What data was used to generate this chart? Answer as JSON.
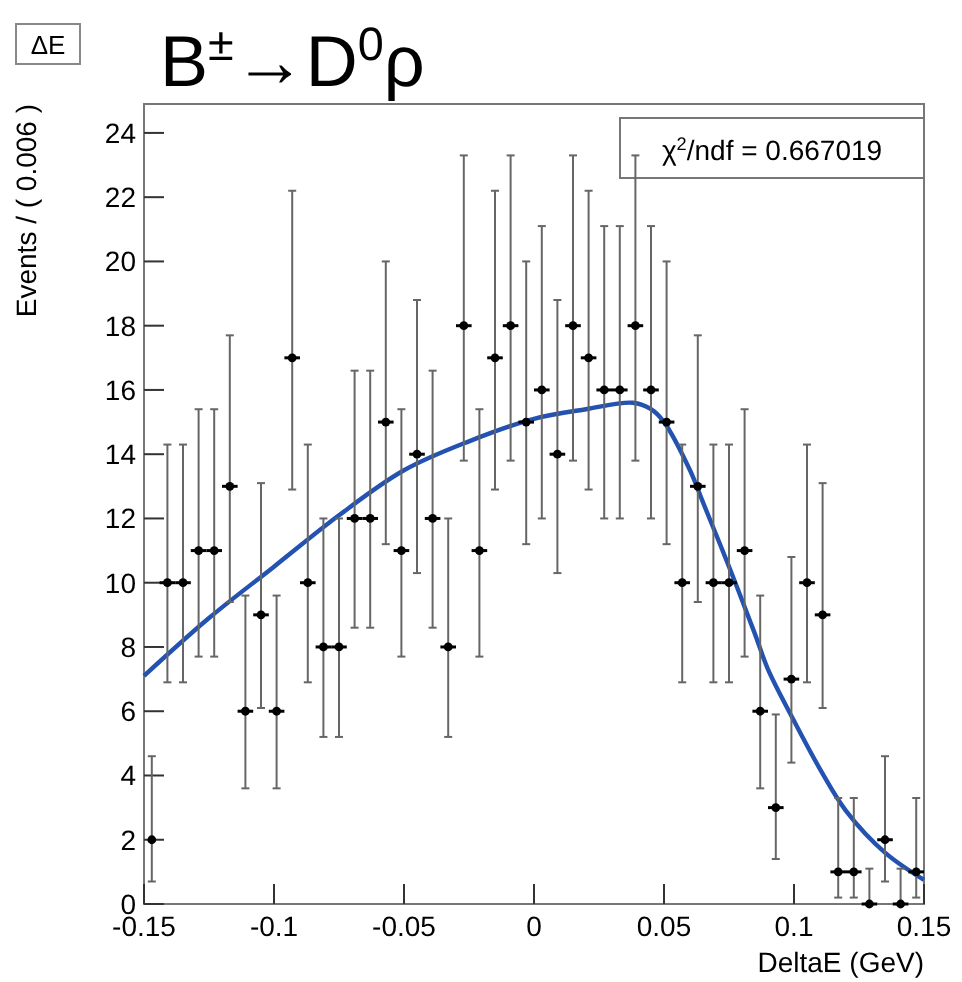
{
  "chart_data": {
    "type": "scatter",
    "title": "B$^{±}$→D$^{0}$ρ",
    "xlabel": "DeltaE (GeV)",
    "ylabel": "Events / ( 0.006 )",
    "annotations": [
      "ΔE",
      "χ$^{2}$/ndf = 0.667019"
    ],
    "xlim": [
      -0.15,
      0.15
    ],
    "xticks": [
      -0.15,
      -0.1,
      -0.05,
      0,
      0.05,
      0.1,
      0.15
    ],
    "ylim": [
      0,
      24.9
    ],
    "yticks": [
      0,
      2,
      4,
      6,
      8,
      10,
      12,
      14,
      16,
      18,
      20,
      22,
      24
    ],
    "grid": false,
    "series": [
      {
        "color": "#000000",
        "marker": "circle",
        "x": [
          -0.147,
          -0.141,
          -0.135,
          -0.129,
          -0.123,
          -0.117,
          -0.111,
          -0.105,
          -0.099,
          -0.093,
          -0.087,
          -0.081,
          -0.075,
          -0.069,
          -0.063,
          -0.057,
          -0.051,
          -0.045,
          -0.039,
          -0.033,
          -0.027,
          -0.021,
          -0.015,
          -0.009,
          -0.003,
          0.003,
          0.009,
          0.015,
          0.021,
          0.027,
          0.033,
          0.039,
          0.045,
          0.051,
          0.057,
          0.063,
          0.069,
          0.075,
          0.081,
          0.087,
          0.093,
          0.099,
          0.105,
          0.111,
          0.117,
          0.123,
          0.129,
          0.135,
          0.141,
          0.147
        ],
        "values": [
          2,
          10,
          10,
          11,
          11,
          13,
          6,
          9,
          6,
          17,
          10,
          8,
          8,
          12,
          12,
          15,
          11,
          14,
          12,
          8,
          18,
          11,
          17,
          18,
          15,
          16,
          14,
          18,
          17,
          16,
          16,
          18,
          16,
          15,
          10,
          13,
          10,
          10,
          11,
          6,
          3,
          7,
          10,
          9,
          1,
          1,
          0,
          2,
          0,
          1
        ],
        "errors": [
          [
            0.7,
            4.6
          ],
          [
            6.9,
            14.3
          ],
          [
            6.9,
            14.3
          ],
          [
            7.7,
            15.4
          ],
          [
            7.7,
            15.4
          ],
          [
            9.4,
            17.7
          ],
          [
            3.6,
            9.6
          ],
          [
            6.1,
            13.1
          ],
          [
            3.6,
            9.6
          ],
          [
            12.9,
            22.2
          ],
          [
            6.9,
            14.3
          ],
          [
            5.2,
            12
          ],
          [
            5.2,
            12
          ],
          [
            8.6,
            16.6
          ],
          [
            8.6,
            16.6
          ],
          [
            11.2,
            20
          ],
          [
            7.7,
            15.4
          ],
          [
            10.3,
            18.8
          ],
          [
            8.6,
            16.6
          ],
          [
            5.2,
            12
          ],
          [
            13.8,
            23.3
          ],
          [
            7.7,
            15.4
          ],
          [
            12.9,
            22.2
          ],
          [
            13.8,
            23.3
          ],
          [
            11.2,
            20
          ],
          [
            12,
            21.1
          ],
          [
            10.3,
            18.8
          ],
          [
            13.8,
            23.3
          ],
          [
            12.9,
            22.2
          ],
          [
            12,
            21.1
          ],
          [
            12,
            21.1
          ],
          [
            13.8,
            23.3
          ],
          [
            12,
            21.1
          ],
          [
            11.2,
            20
          ],
          [
            6.9,
            14.3
          ],
          [
            9.4,
            17.7
          ],
          [
            6.9,
            14.3
          ],
          [
            6.9,
            14.3
          ],
          [
            7.7,
            15.4
          ],
          [
            3.6,
            9.6
          ],
          [
            1.4,
            5.9
          ],
          [
            4.4,
            10.8
          ],
          [
            6.9,
            14.3
          ],
          [
            6.1,
            13.1
          ],
          [
            0.2,
            3.3
          ],
          [
            0.2,
            3.3
          ],
          [
            0,
            1.1
          ],
          [
            0.7,
            4.6
          ],
          [
            0,
            1.1
          ],
          [
            0.2,
            3.3
          ]
        ],
        "xerrors": [
          null,
          0.003,
          0.003,
          0.003,
          0.003,
          0.003,
          0.003,
          0.003,
          0.003,
          0.003,
          0.003,
          0.003,
          0.003,
          0.003,
          0.003,
          0.003,
          0.003,
          0.003,
          0.003,
          0.003,
          0.003,
          0.003,
          0.003,
          0.003,
          0.003,
          0.003,
          0.003,
          0.003,
          0.003,
          0.003,
          0.003,
          0.003,
          0.003,
          0.003,
          0.003,
          0.003,
          0.003,
          0.003,
          0.003,
          0.003,
          0.003,
          0.003,
          0.003,
          0.003,
          0.003,
          0.003,
          0.003,
          0.003,
          0.003,
          0.003
        ]
      },
      {
        "type": "line",
        "color": "#2352b0",
        "marker": "none",
        "line_style": "solid",
        "x": [
          -0.15,
          -0.125,
          -0.1,
          -0.075,
          -0.05,
          -0.025,
          0,
          0.02,
          0.038,
          0.045,
          0.05,
          0.06,
          0.065,
          0.075,
          0.085,
          0.09,
          0.1,
          0.11,
          0.12,
          0.135,
          0.15
        ],
        "values": [
          7.1,
          8.9,
          10.5,
          12.1,
          13.5,
          14.4,
          15.1,
          15.4,
          15.6,
          15.4,
          15.0,
          13.5,
          12.5,
          10.5,
          8.4,
          7.3,
          5.7,
          4.2,
          2.9,
          1.6,
          0.75
        ]
      }
    ]
  }
}
